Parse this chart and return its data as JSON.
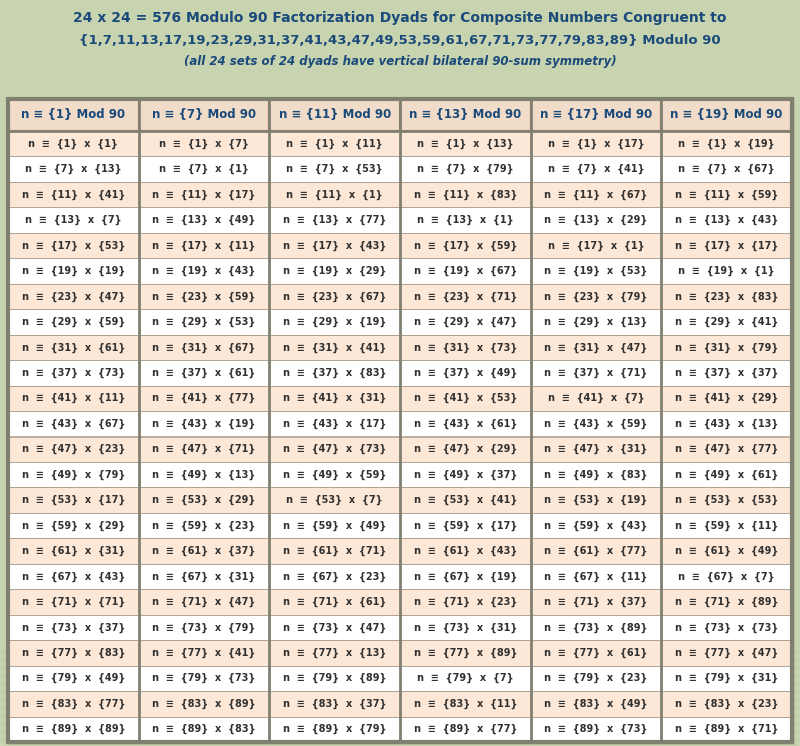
{
  "title_line1": "24 x 24 = 576 Modulo 90 Factorization Dyads for Composite Numbers Congruent to",
  "title_line2": "{1,7,11,13,17,19,23,29,31,37,41,43,47,49,53,59,61,67,71,73,77,79,83,89} Modulo 90",
  "title_line3": "(all 24 sets of 24 dyads have vertical bilateral 90-sum symmetry)",
  "wave_bg": "#c8d4b0",
  "col_header_bg": "#f0dcc8",
  "col_header_border": "#a08060",
  "cell_bg_odd": "#fde8d8",
  "cell_bg_even": "#ffffff",
  "grid_color": "#a09080",
  "outer_border_color": "#808070",
  "title_text_color": "#1a4a7a",
  "col_header_text_color": "#1a4a7a",
  "cell_text_color": "#303030",
  "col_headers": [
    "n ≡ {1} Mod 90",
    "n ≡ {7} Mod 90",
    "n ≡ {11} Mod 90",
    "n ≡ {13} Mod 90",
    "n ≡ {17} Mod 90",
    "n ≡ {19} Mod 90"
  ],
  "columns": [
    [
      "n  ≡  {1}  x  {1}",
      "n  ≡  {7}  x  {13}",
      "n  ≡  {11}  x  {41}",
      "n  ≡  {13}  x  {7}",
      "n  ≡  {17}  x  {53}",
      "n  ≡  {19}  x  {19}",
      "n  ≡  {23}  x  {47}",
      "n  ≡  {29}  x  {59}",
      "n  ≡  {31}  x  {61}",
      "n  ≡  {37}  x  {73}",
      "n  ≡  {41}  x  {11}",
      "n  ≡  {43}  x  {67}",
      "n  ≡  {47}  x  {23}",
      "n  ≡  {49}  x  {79}",
      "n  ≡  {53}  x  {17}",
      "n  ≡  {59}  x  {29}",
      "n  ≡  {61}  x  {31}",
      "n  ≡  {67}  x  {43}",
      "n  ≡  {71}  x  {71}",
      "n  ≡  {73}  x  {37}",
      "n  ≡  {77}  x  {83}",
      "n  ≡  {79}  x  {49}",
      "n  ≡  {83}  x  {77}",
      "n  ≡  {89}  x  {89}"
    ],
    [
      "n  ≡  {1}  x  {7}",
      "n  ≡  {7}  x  {1}",
      "n  ≡  {11}  x  {17}",
      "n  ≡  {13}  x  {49}",
      "n  ≡  {17}  x  {11}",
      "n  ≡  {19}  x  {43}",
      "n  ≡  {23}  x  {59}",
      "n  ≡  {29}  x  {53}",
      "n  ≡  {31}  x  {67}",
      "n  ≡  {37}  x  {61}",
      "n  ≡  {41}  x  {77}",
      "n  ≡  {43}  x  {19}",
      "n  ≡  {47}  x  {71}",
      "n  ≡  {49}  x  {13}",
      "n  ≡  {53}  x  {29}",
      "n  ≡  {59}  x  {23}",
      "n  ≡  {61}  x  {37}",
      "n  ≡  {67}  x  {31}",
      "n  ≡  {71}  x  {47}",
      "n  ≡  {73}  x  {79}",
      "n  ≡  {77}  x  {41}",
      "n  ≡  {79}  x  {73}",
      "n  ≡  {83}  x  {89}",
      "n  ≡  {89}  x  {83}"
    ],
    [
      "n  ≡  {1}  x  {11}",
      "n  ≡  {7}  x  {53}",
      "n  ≡  {11}  x  {1}",
      "n  ≡  {13}  x  {77}",
      "n  ≡  {17}  x  {43}",
      "n  ≡  {19}  x  {29}",
      "n  ≡  {23}  x  {67}",
      "n  ≡  {29}  x  {19}",
      "n  ≡  {31}  x  {41}",
      "n  ≡  {37}  x  {83}",
      "n  ≡  {41}  x  {31}",
      "n  ≡  {43}  x  {17}",
      "n  ≡  {47}  x  {73}",
      "n  ≡  {49}  x  {59}",
      "n  ≡  {53}  x  {7}",
      "n  ≡  {59}  x  {49}",
      "n  ≡  {61}  x  {71}",
      "n  ≡  {67}  x  {23}",
      "n  ≡  {71}  x  {61}",
      "n  ≡  {73}  x  {47}",
      "n  ≡  {77}  x  {13}",
      "n  ≡  {79}  x  {89}",
      "n  ≡  {83}  x  {37}",
      "n  ≡  {89}  x  {79}"
    ],
    [
      "n  ≡  {1}  x  {13}",
      "n  ≡  {7}  x  {79}",
      "n  ≡  {11}  x  {83}",
      "n  ≡  {13}  x  {1}",
      "n  ≡  {17}  x  {59}",
      "n  ≡  {19}  x  {67}",
      "n  ≡  {23}  x  {71}",
      "n  ≡  {29}  x  {47}",
      "n  ≡  {31}  x  {73}",
      "n  ≡  {37}  x  {49}",
      "n  ≡  {41}  x  {53}",
      "n  ≡  {43}  x  {61}",
      "n  ≡  {47}  x  {29}",
      "n  ≡  {49}  x  {37}",
      "n  ≡  {53}  x  {41}",
      "n  ≡  {59}  x  {17}",
      "n  ≡  {61}  x  {43}",
      "n  ≡  {67}  x  {19}",
      "n  ≡  {71}  x  {23}",
      "n  ≡  {73}  x  {31}",
      "n  ≡  {77}  x  {89}",
      "n  ≡  {79}  x  {7}",
      "n  ≡  {83}  x  {11}",
      "n  ≡  {89}  x  {77}"
    ],
    [
      "n  ≡  {1}  x  {17}",
      "n  ≡  {7}  x  {41}",
      "n  ≡  {11}  x  {67}",
      "n  ≡  {13}  x  {29}",
      "n  ≡  {17}  x  {1}",
      "n  ≡  {19}  x  {53}",
      "n  ≡  {23}  x  {79}",
      "n  ≡  {29}  x  {13}",
      "n  ≡  {31}  x  {47}",
      "n  ≡  {37}  x  {71}",
      "n  ≡  {41}  x  {7}",
      "n  ≡  {43}  x  {59}",
      "n  ≡  {47}  x  {31}",
      "n  ≡  {49}  x  {83}",
      "n  ≡  {53}  x  {19}",
      "n  ≡  {59}  x  {43}",
      "n  ≡  {61}  x  {77}",
      "n  ≡  {67}  x  {11}",
      "n  ≡  {71}  x  {37}",
      "n  ≡  {73}  x  {89}",
      "n  ≡  {77}  x  {61}",
      "n  ≡  {79}  x  {23}",
      "n  ≡  {83}  x  {49}",
      "n  ≡  {89}  x  {73}"
    ],
    [
      "n  ≡  {1}  x  {19}",
      "n  ≡  {7}  x  {67}",
      "n  ≡  {11}  x  {59}",
      "n  ≡  {13}  x  {43}",
      "n  ≡  {17}  x  {17}",
      "n  ≡  {19}  x  {1}",
      "n  ≡  {23}  x  {83}",
      "n  ≡  {29}  x  {41}",
      "n  ≡  {31}  x  {79}",
      "n  ≡  {37}  x  {37}",
      "n  ≡  {41}  x  {29}",
      "n  ≡  {43}  x  {13}",
      "n  ≡  {47}  x  {77}",
      "n  ≡  {49}  x  {61}",
      "n  ≡  {53}  x  {53}",
      "n  ≡  {59}  x  {11}",
      "n  ≡  {61}  x  {49}",
      "n  ≡  {67}  x  {7}",
      "n  ≡  {71}  x  {89}",
      "n  ≡  {73}  x  {73}",
      "n  ≡  {77}  x  {47}",
      "n  ≡  {79}  x  {31}",
      "n  ≡  {83}  x  {23}",
      "n  ≡  {89}  x  {71}"
    ]
  ]
}
